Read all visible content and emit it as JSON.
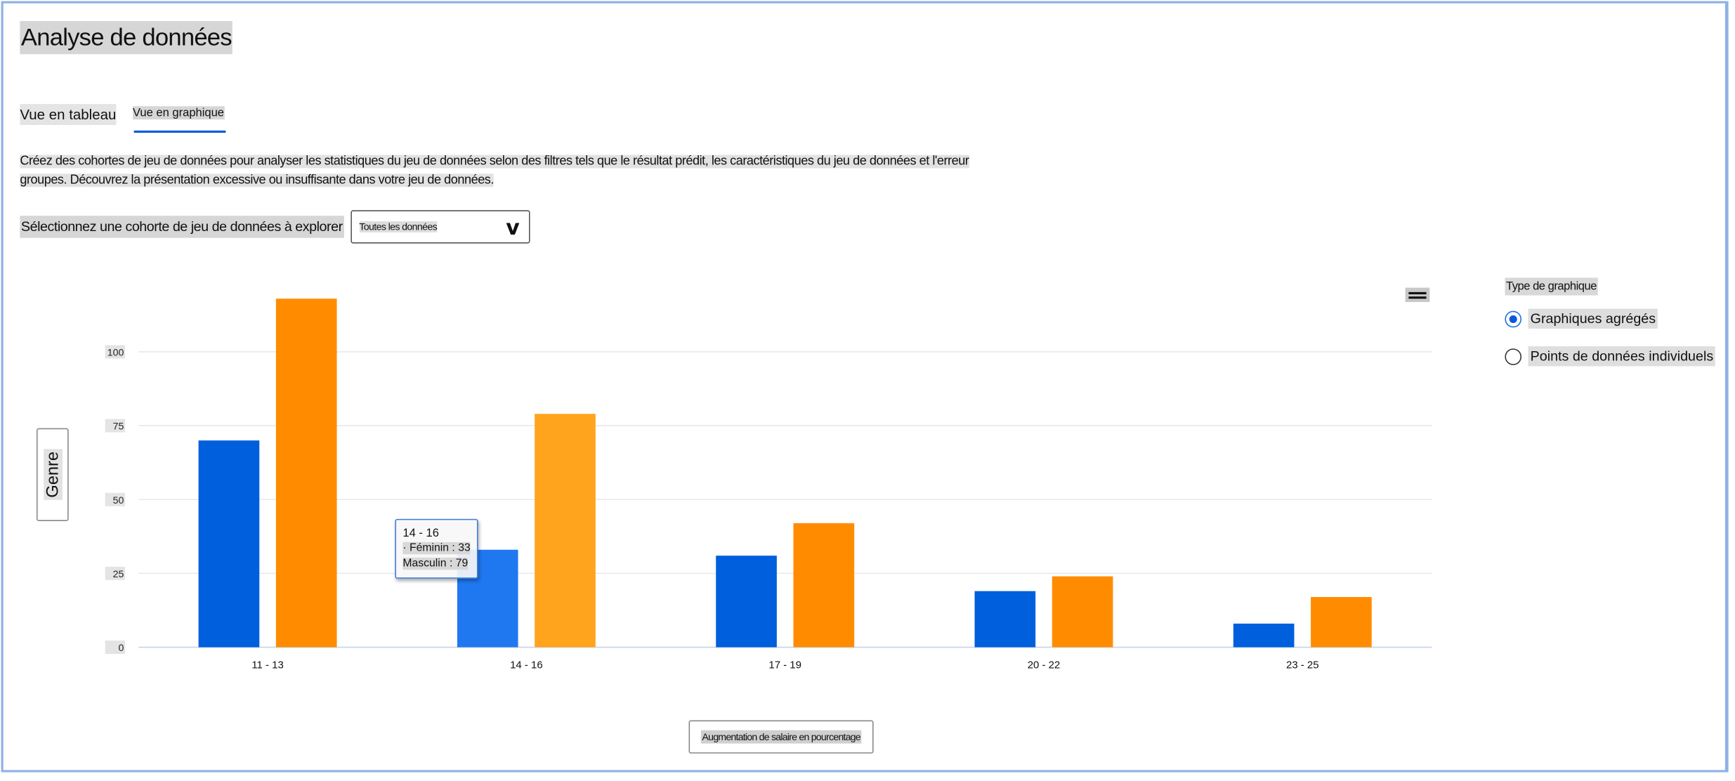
{
  "header": {
    "title": "Analyse de données"
  },
  "tabs": [
    {
      "label": "Vue en tableau",
      "active": false
    },
    {
      "label": "Vue en graphique",
      "active": true
    }
  ],
  "description": {
    "line1": "Créez des cohortes de jeu de données pour analyser les statistiques du jeu de données selon des filtres tels que le résultat prédit, les caractéristiques du jeu de données et l'erreur",
    "line2": "groupes. Découvrez la présentation excessive ou insuffisante dans votre jeu de données."
  },
  "cohort": {
    "label": "Sélectionnez une cohorte de jeu de données à explorer",
    "selected": "Toutes les données",
    "icon": "chevron-down-icon"
  },
  "chart_type": {
    "title": "Type de graphique",
    "options": [
      {
        "label": "Graphiques agrégés",
        "selected": true
      },
      {
        "label": "Points de données individuels",
        "selected": false
      }
    ]
  },
  "menu_icon": "hamburger-menu-icon",
  "colors": {
    "accent": "#0a5ad6",
    "female": "#005fdc",
    "male": "#ff8c00",
    "female_hover": "#1f78f0",
    "male_hover": "#ffa41c"
  },
  "tooltip": {
    "title": "14 - 16",
    "line1": "· Féminin : 33",
    "line2": "Masculin : 79"
  },
  "chart_data": {
    "type": "bar",
    "categories": [
      "11 - 13",
      "14 - 16",
      "17 - 19",
      "20 - 22",
      "23 - 25"
    ],
    "series": [
      {
        "name": "Féminin",
        "values": [
          70,
          33,
          31,
          19,
          8
        ]
      },
      {
        "name": "Masculin",
        "values": [
          118,
          79,
          42,
          24,
          17
        ]
      }
    ],
    "xlabel": "Augmentation de salaire en pourcentage",
    "ylabel": "Genre",
    "yticks": [
      0,
      25,
      50,
      75,
      100
    ],
    "ylim": [
      0,
      125
    ],
    "grid": true,
    "highlighted_category": "14 - 16"
  }
}
